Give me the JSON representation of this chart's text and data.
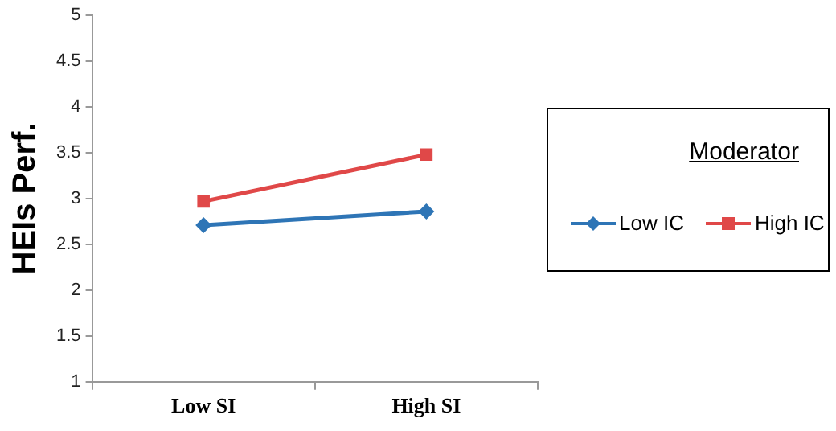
{
  "chart_data": {
    "type": "line",
    "ylabel": "HEIs Perf.",
    "legend_title": "Moderator",
    "categories": [
      "Low SI",
      "High SI"
    ],
    "series": [
      {
        "name": "Low IC",
        "color": "#2e75b6",
        "values": [
          2.71,
          2.86
        ],
        "marker": "diamond"
      },
      {
        "name": "High IC",
        "color": "#e04848",
        "values": [
          2.97,
          3.48
        ],
        "marker": "square"
      }
    ],
    "ylim": [
      1,
      5
    ],
    "yticks": [
      1,
      1.5,
      2,
      2.5,
      3,
      3.5,
      4,
      4.5,
      5
    ],
    "grid": false,
    "legend": "right",
    "line_style": "solid"
  }
}
